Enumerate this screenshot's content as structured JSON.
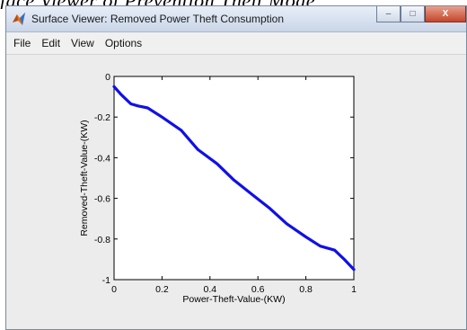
{
  "caption": {
    "text": "face Viewer of Prevention Theft Mode"
  },
  "window": {
    "title": "Surface Viewer: Removed Power Theft Consumption",
    "controls": {
      "minimize": "–",
      "maximize": "□",
      "close": "X"
    }
  },
  "menu": {
    "items": [
      {
        "label": "File"
      },
      {
        "label": "Edit"
      },
      {
        "label": "View"
      },
      {
        "label": "Options"
      }
    ]
  },
  "colors": {
    "curve": "#1010e8",
    "accent": "#c4452a"
  },
  "chart_data": {
    "type": "line",
    "xlabel": "Power-Theft-Value-(KW)",
    "ylabel": "Removed-Theft-Value-(KW)",
    "xlim": [
      0,
      1
    ],
    "ylim": [
      -1,
      0
    ],
    "xticks": [
      0,
      0.2,
      0.4,
      0.6,
      0.8,
      1
    ],
    "xtick_labels": [
      "0",
      "0.2",
      "0.4",
      "0.6",
      "0.8",
      "1"
    ],
    "yticks": [
      0,
      -0.2,
      -0.4,
      -0.6,
      -0.8,
      -1
    ],
    "ytick_labels": [
      "0",
      "-0.2",
      "-0.4",
      "-0.6",
      "-0.8",
      "-1"
    ],
    "grid": false,
    "series": [
      {
        "x": [
          0,
          0.03,
          0.07,
          0.1,
          0.14,
          0.2,
          0.28,
          0.35,
          0.43,
          0.5,
          0.58,
          0.65,
          0.72,
          0.8,
          0.86,
          0.92,
          0.96,
          1
        ],
        "y": [
          -0.05,
          -0.09,
          -0.135,
          -0.145,
          -0.155,
          -0.2,
          -0.265,
          -0.36,
          -0.43,
          -0.51,
          -0.585,
          -0.65,
          -0.725,
          -0.79,
          -0.835,
          -0.855,
          -0.9,
          -0.95
        ]
      }
    ]
  }
}
